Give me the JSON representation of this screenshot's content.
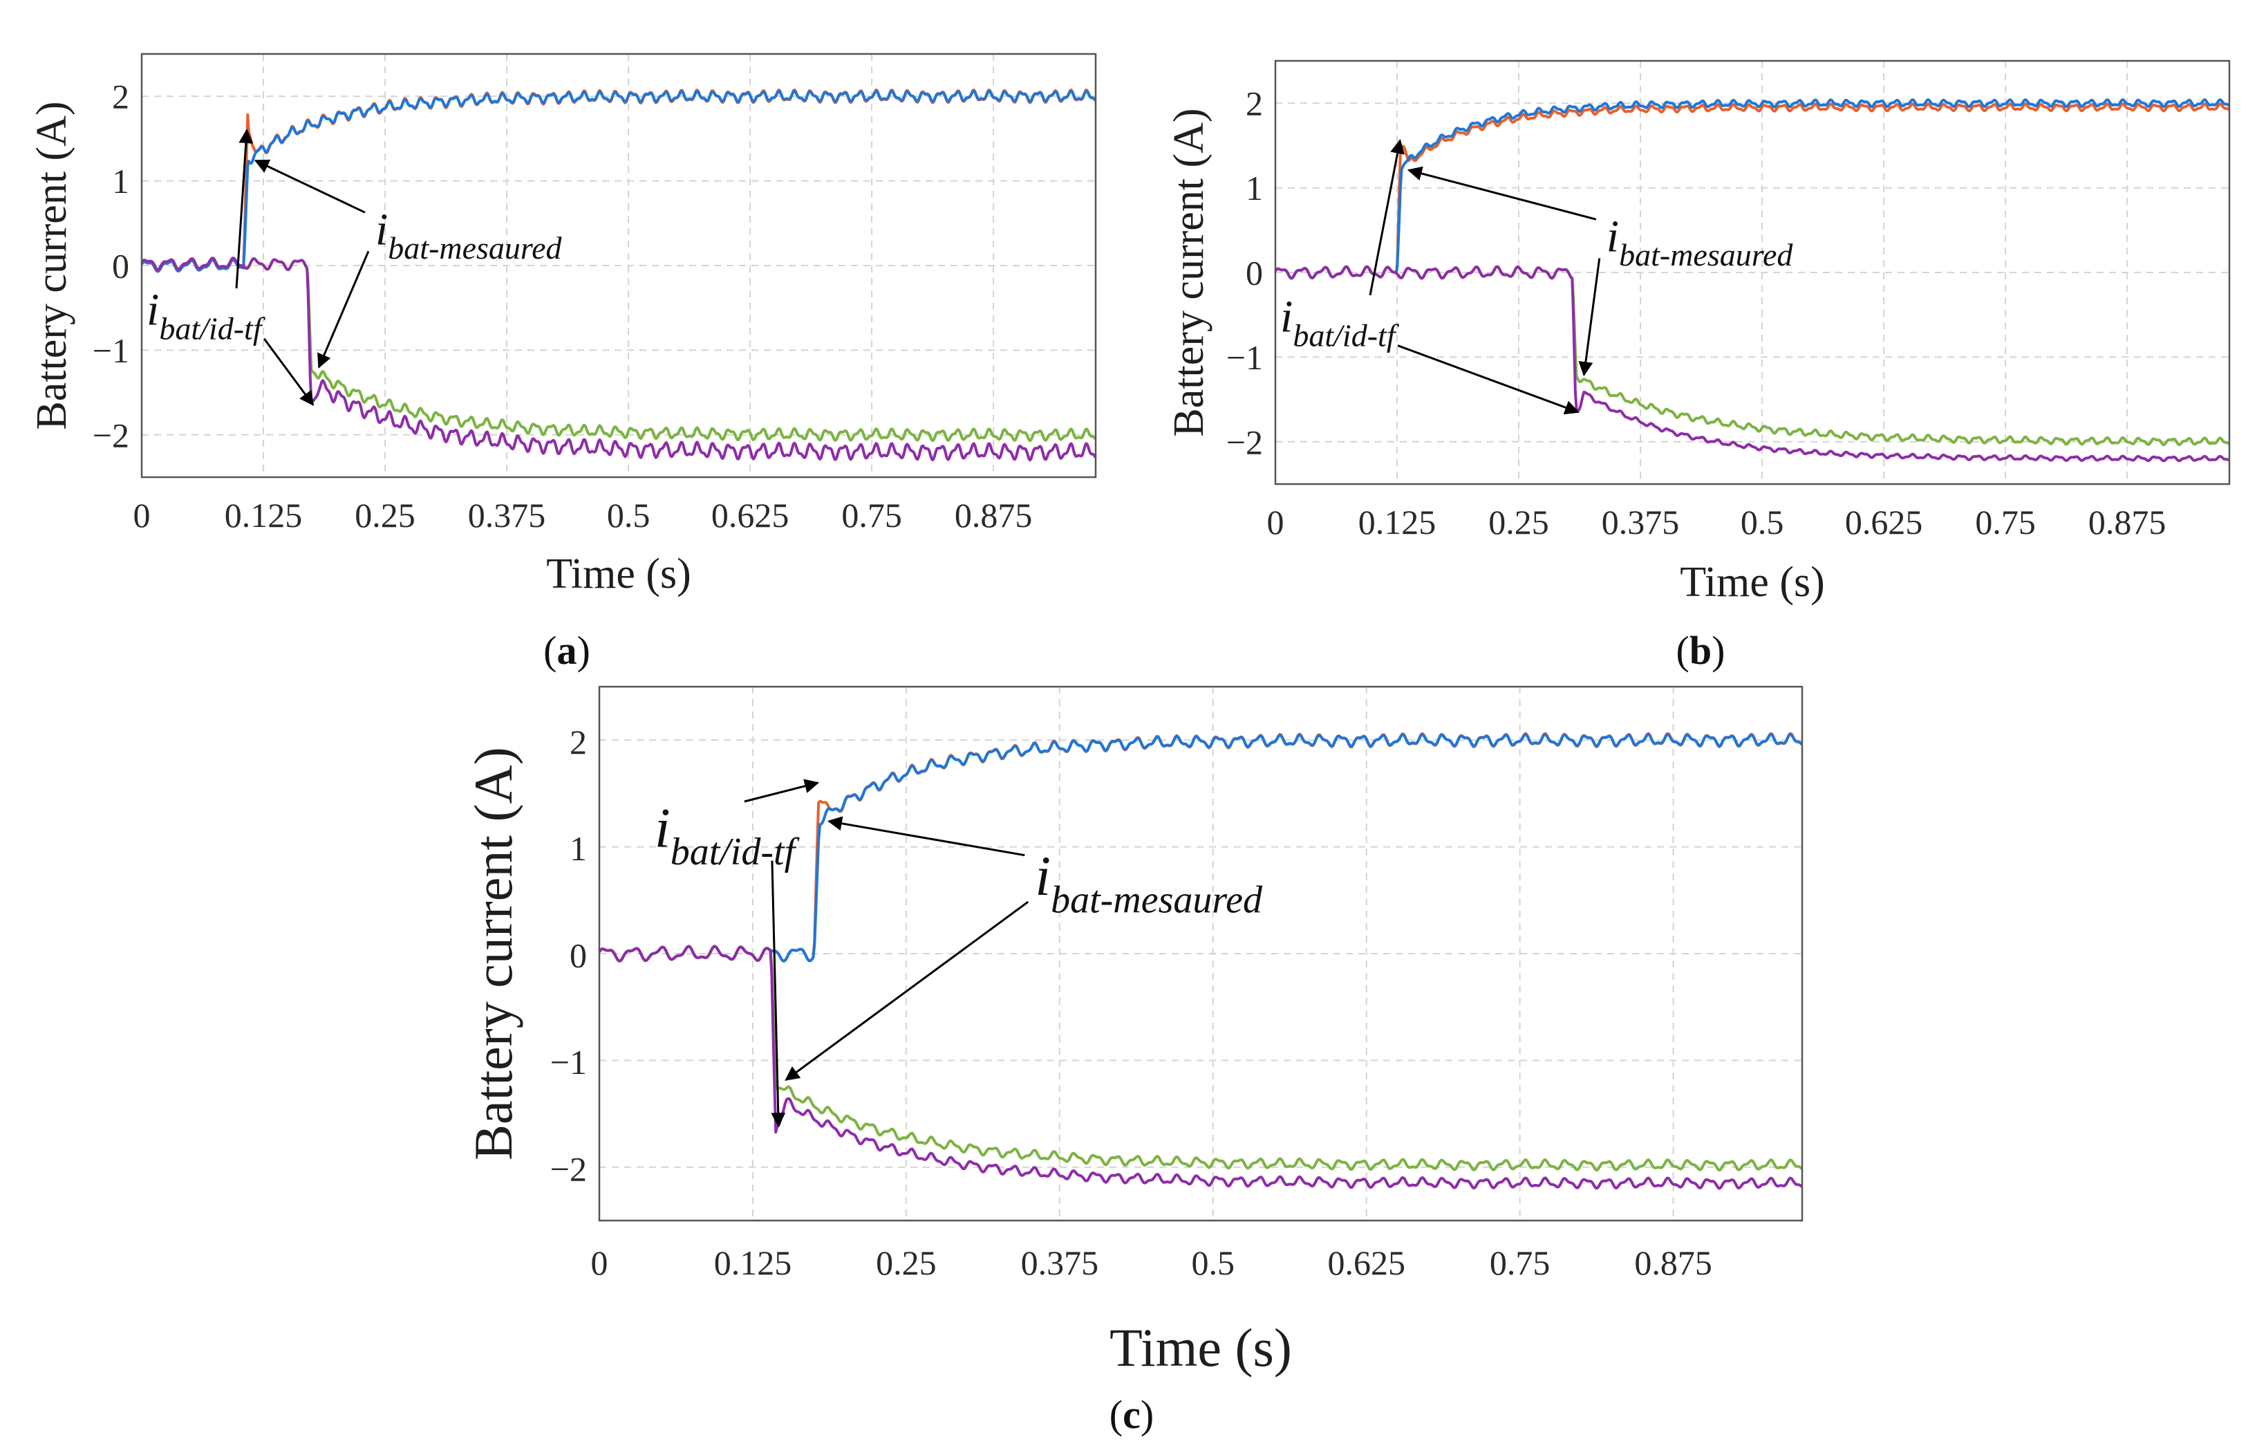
{
  "chart_data": [
    {
      "type": "line",
      "panel_label": "a",
      "xlabel": "Time (s)",
      "ylabel": "Battery current (A)",
      "xlim": [
        0,
        0.98
      ],
      "ylim": [
        -2.5,
        2.5
      ],
      "xticks": [
        "0",
        "0.125",
        "0.25",
        "0.375",
        "0.5",
        "0.625",
        "0.75",
        "0.875"
      ],
      "yticks": [
        "2",
        "1",
        "0",
        "−1",
        "−2"
      ],
      "grid": true,
      "annotations": {
        "bat_idtf": {
          "main": "i",
          "sub": "bat/id-tf"
        },
        "bat_measured": {
          "main": "i",
          "sub": "bat-mesaured"
        }
      },
      "series": [
        {
          "color": "#E8602C",
          "step_time": 0.105,
          "start": 0.0,
          "final": 2.0,
          "overshoot": 0.55,
          "tau": 0.08,
          "ripple": 0.055
        },
        {
          "color": "#1F77D8",
          "step_time": 0.105,
          "start": 0.0,
          "final": 2.0,
          "overshoot": 0.0,
          "tau": 0.08,
          "ripple": 0.045
        },
        {
          "color": "#7CB342",
          "step_time": 0.17,
          "start": 0.02,
          "final": -2.0,
          "overshoot": 0.0,
          "tau": 0.1,
          "ripple": 0.05
        },
        {
          "color": "#8E2DA8",
          "step_time": 0.17,
          "start": 0.02,
          "final": -2.2,
          "overshoot": -0.35,
          "tau": 0.1,
          "ripple": 0.07
        }
      ]
    },
    {
      "type": "line",
      "panel_label": "b",
      "xlabel": "Time (s)",
      "ylabel": "Battery current (A)",
      "xlim": [
        0,
        0.98
      ],
      "ylim": [
        -2.5,
        2.5
      ],
      "xticks": [
        "0",
        "0.125",
        "0.25",
        "0.375",
        "0.5",
        "0.625",
        "0.75",
        "0.875"
      ],
      "yticks": [
        "2",
        "1",
        "0",
        "−1",
        "−2"
      ],
      "grid": true,
      "annotations": {
        "bat_idtf": {
          "main": "i",
          "sub": "bat/id-tf"
        },
        "bat_measured": {
          "main": "i",
          "sub": "bat-mesaured"
        }
      },
      "series": [
        {
          "color": "#E8602C",
          "step_time": 0.125,
          "start": 0.0,
          "final": 1.95,
          "overshoot": 0.45,
          "tau": 0.07,
          "ripple": 0.03
        },
        {
          "color": "#1F77D8",
          "step_time": 0.125,
          "start": 0.0,
          "final": 2.0,
          "overshoot": 0.0,
          "tau": 0.07,
          "ripple": 0.03
        },
        {
          "color": "#7CB342",
          "step_time": 0.305,
          "start": 0.0,
          "final": -2.0,
          "overshoot": 0.0,
          "tau": 0.12,
          "ripple": 0.03
        },
        {
          "color": "#8E2DA8",
          "step_time": 0.305,
          "start": 0.0,
          "final": -2.2,
          "overshoot": -0.4,
          "tau": 0.1,
          "ripple": 0.02
        }
      ]
    },
    {
      "type": "line",
      "panel_label": "c",
      "xlabel": "Time (s)",
      "ylabel": "Battery current (A)",
      "xlim": [
        0,
        0.98
      ],
      "ylim": [
        -2.5,
        2.5
      ],
      "xticks": [
        "0",
        "0.125",
        "0.25",
        "0.375",
        "0.5",
        "0.625",
        "0.75",
        "0.875"
      ],
      "yticks": [
        "2",
        "1",
        "0",
        "−1",
        "−2"
      ],
      "grid": true,
      "annotations": {
        "bat_idtf": {
          "main": "i",
          "sub": "bat/id-tf"
        },
        "bat_measured": {
          "main": "i",
          "sub": "bat-mesaured"
        }
      },
      "series": [
        {
          "color": "#E8602C",
          "step_time": 0.175,
          "start": 0.0,
          "final": 2.0,
          "overshoot": 0.35,
          "tau": 0.08,
          "ripple": 0.045
        },
        {
          "color": "#1F77D8",
          "step_time": 0.175,
          "start": 0.0,
          "final": 2.0,
          "overshoot": 0.0,
          "tau": 0.08,
          "ripple": 0.04
        },
        {
          "color": "#7CB342",
          "step_time": 0.14,
          "start": 0.0,
          "final": -1.98,
          "overshoot": 0.0,
          "tau": 0.1,
          "ripple": 0.035
        },
        {
          "color": "#8E2DA8",
          "step_time": 0.14,
          "start": 0.0,
          "final": -2.15,
          "overshoot": -0.4,
          "tau": 0.1,
          "ripple": 0.035
        }
      ]
    }
  ]
}
